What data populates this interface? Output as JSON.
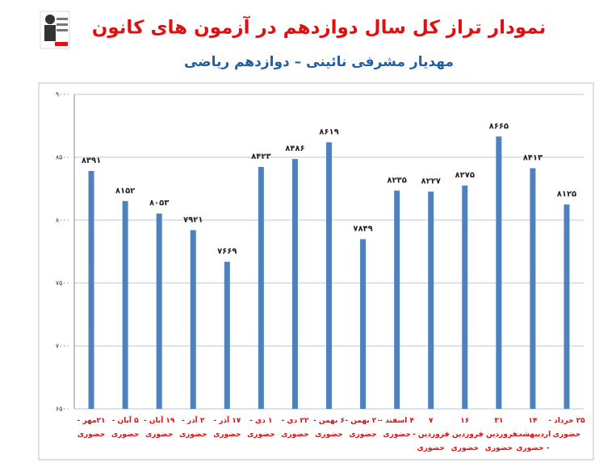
{
  "chart_data": {
    "type": "bar",
    "title": "نمودار تراز کل سال دوازدهم در آزمون های کانون",
    "subtitle": "مهدیار مشرفی نائینی – دوازدهم ریاضی",
    "categories": [
      "۲۱مهر - حضوری",
      "۵ آبان - حضوری",
      "۱۹ آبان - حضوری",
      "۳ آذر - حضوری",
      "۱۷ آذر - حضوری",
      "۱ دی - حضوری",
      "۲۲ دی - حضوری",
      "۶ بهمن - حضوری",
      "۲۰ بهمن - حضوری",
      "۴ اسفند - حضوری",
      "۷ فروردین - حضوری",
      "۱۶ فروردین - حضوری",
      "۳۱ فروردین - حضوری",
      "۱۴ اردیبهشت - حضوری",
      "۲۵ خرداد - حضوری"
    ],
    "values": [
      8391,
      8152,
      8053,
      7921,
      7669,
      8423,
      8486,
      8619,
      7849,
      8235,
      8227,
      8275,
      8665,
      8413,
      8125
    ],
    "value_labels": [
      "۸۳۹۱",
      "۸۱۵۲",
      "۸۰۵۳",
      "۷۹۲۱",
      "۷۶۶۹",
      "۸۴۲۳",
      "۸۴۸۶",
      "۸۶۱۹",
      "۷۸۴۹",
      "۸۲۳۵",
      "۸۲۲۷",
      "۸۲۷۵",
      "۸۶۶۵",
      "۸۴۱۳",
      "۸۱۲۵"
    ],
    "color": "#4f81bd",
    "ylim": [
      6500,
      9000
    ],
    "yticks": [
      {
        "value": 6500,
        "label": "۶۵۰۰"
      },
      {
        "value": 7000,
        "label": "۷۰۰۰"
      },
      {
        "value": 7500,
        "label": "۷۵۰۰"
      },
      {
        "value": 8000,
        "label": "۸۰۰۰"
      },
      {
        "value": 8500,
        "label": "۸۵۰۰"
      },
      {
        "value": 9000,
        "label": "۹۰۰۰"
      }
    ],
    "grid": true
  }
}
